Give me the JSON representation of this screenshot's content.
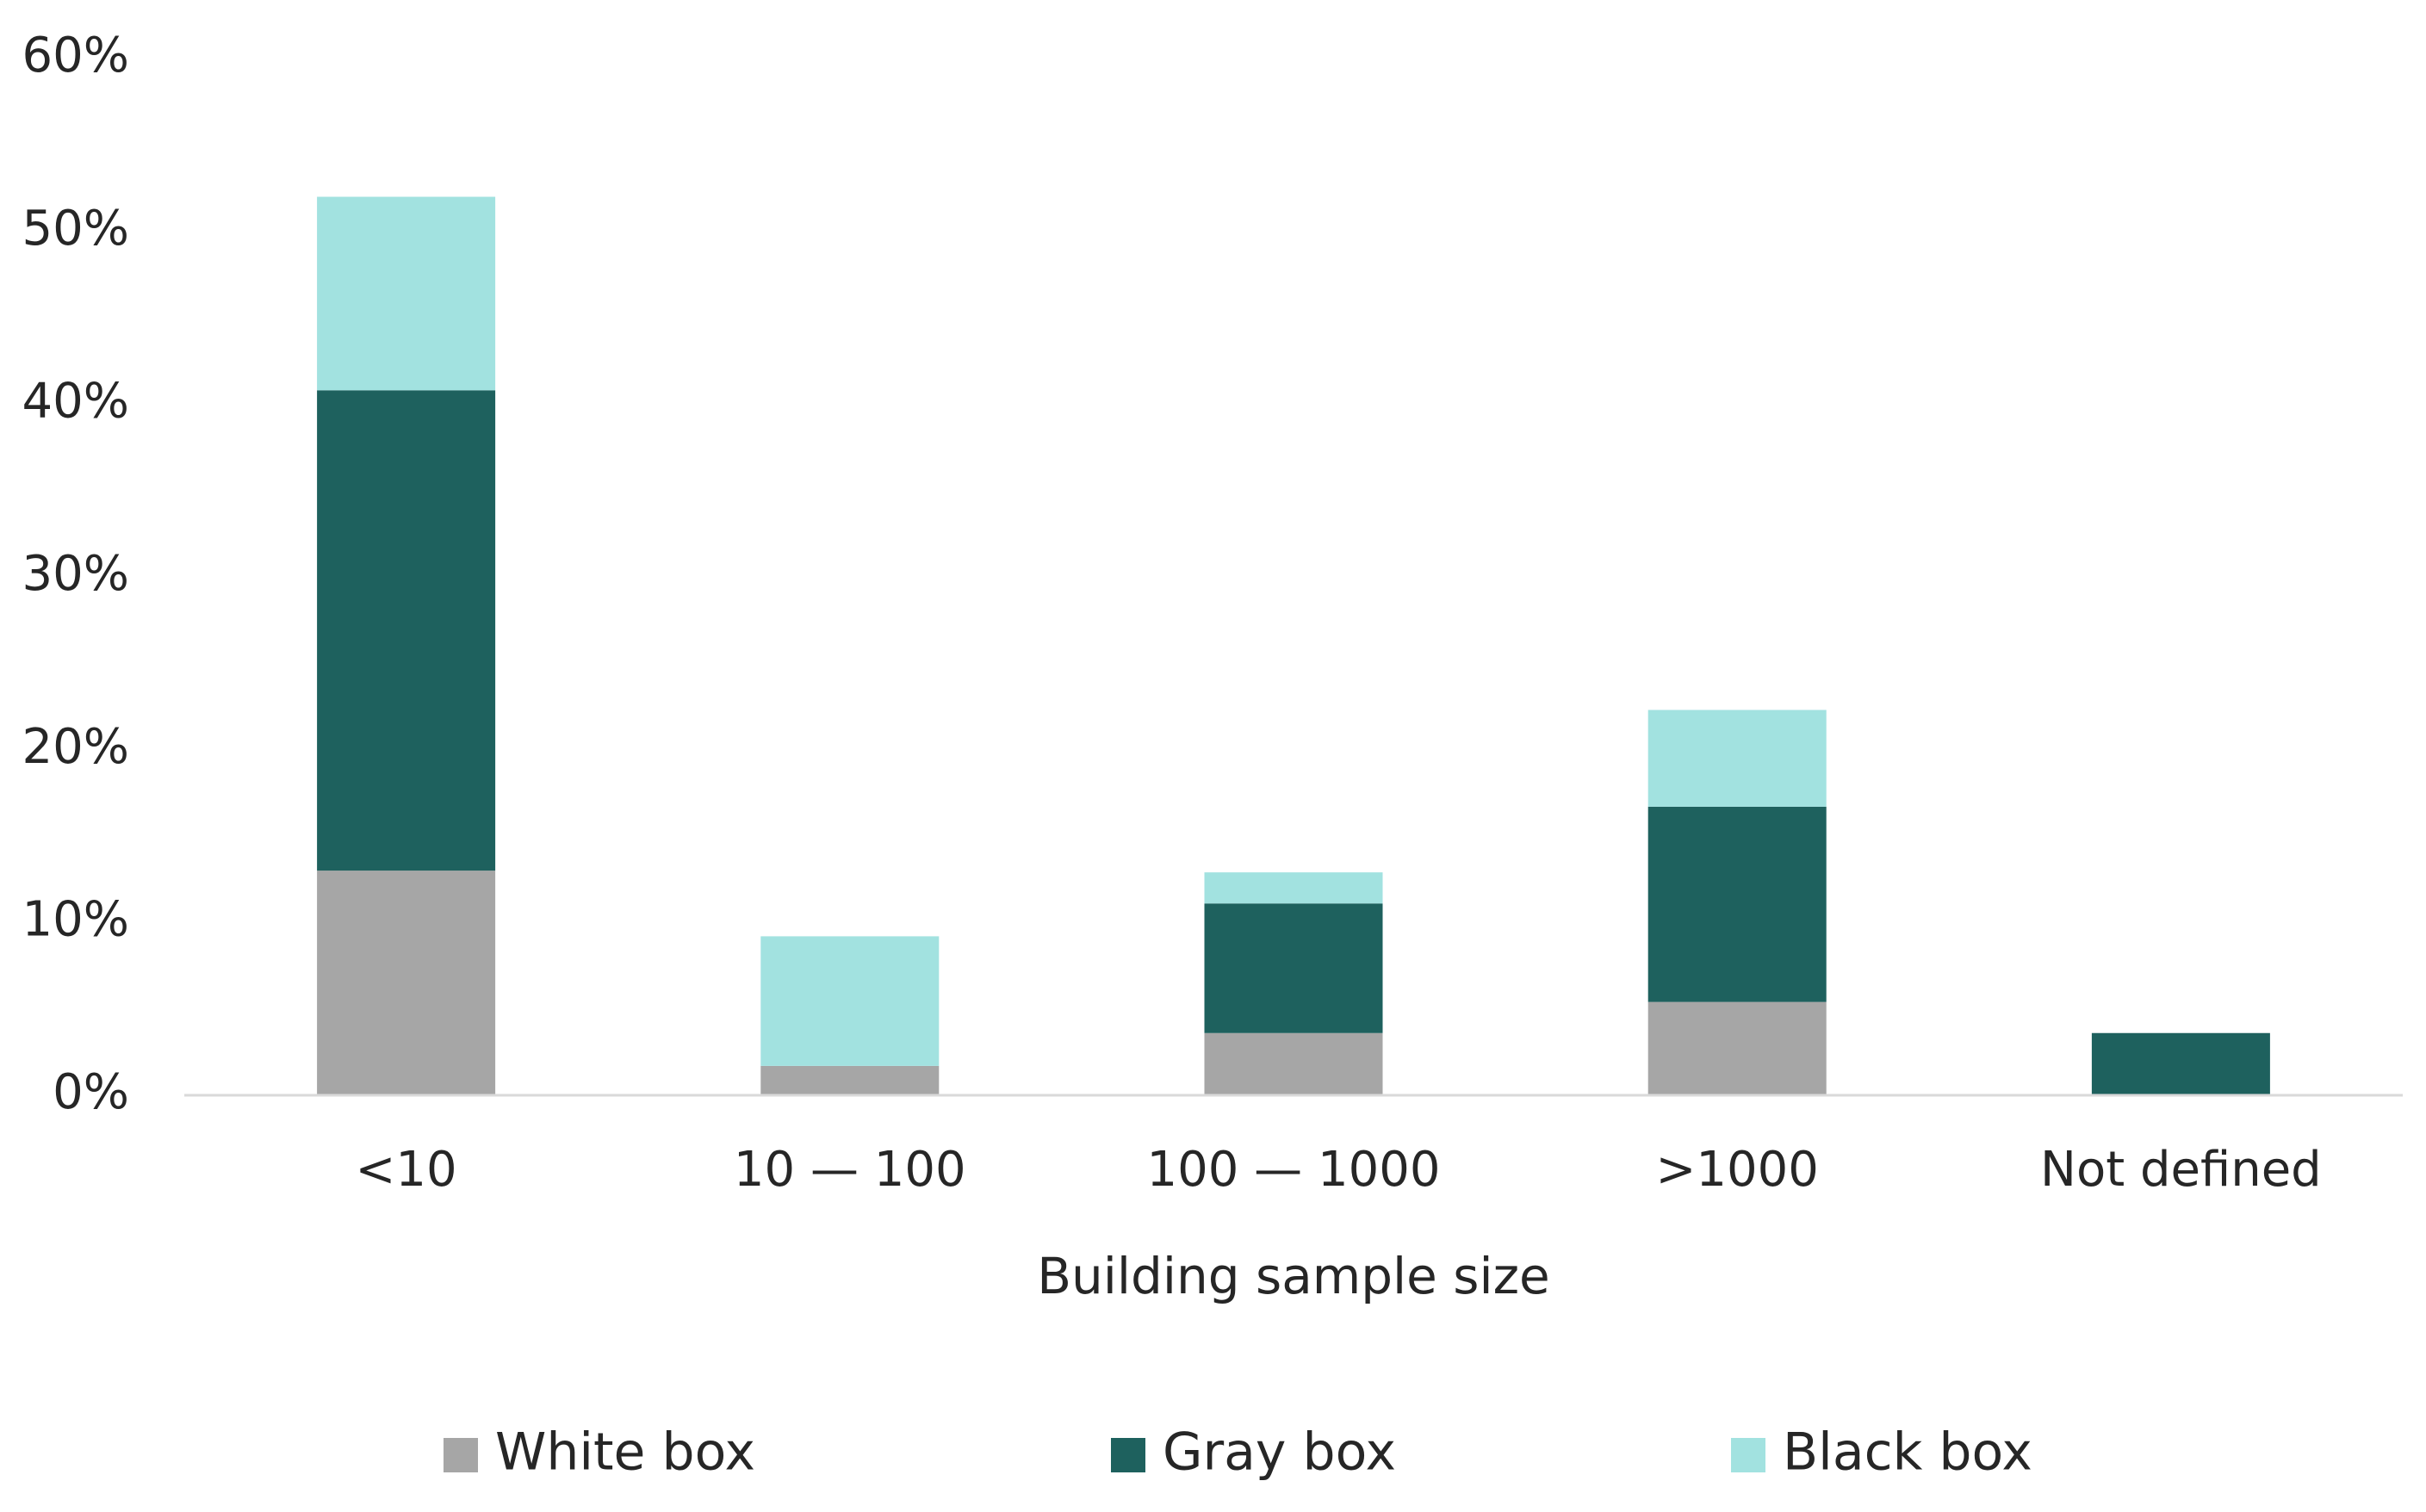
{
  "chart_data": {
    "type": "bar",
    "stacked": true,
    "title": "",
    "xlabel": "Building sample size",
    "ylabel": "",
    "categories": [
      "<10",
      "10 — 100",
      "100 — 1000",
      ">1000",
      "Not defined"
    ],
    "series": [
      {
        "name": "White box",
        "color": "#a6a6a6",
        "values": [
          13,
          1.7,
          3.6,
          5.4,
          0
        ]
      },
      {
        "name": "Gray box",
        "color": "#1e615e",
        "values": [
          27.8,
          0,
          7.5,
          11.3,
          3.6
        ]
      },
      {
        "name": "Black box",
        "color": "#a2e2e0",
        "values": [
          11.2,
          7.5,
          1.8,
          5.6,
          0
        ]
      }
    ],
    "ylim": [
      0,
      60
    ],
    "yticks": [
      0,
      10,
      20,
      30,
      40,
      50,
      60
    ],
    "ytick_labels": [
      "0%",
      "10%",
      "20%",
      "30%",
      "40%",
      "50%",
      "60%"
    ],
    "grid": false,
    "legend_position": "bottom",
    "axis_color": "#d9d9d9"
  }
}
